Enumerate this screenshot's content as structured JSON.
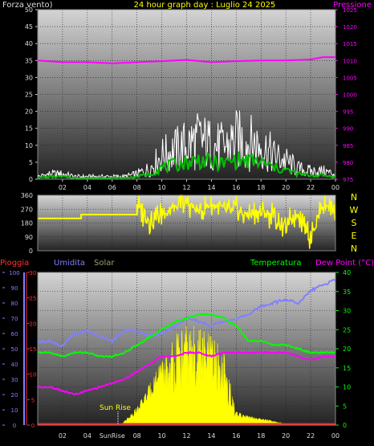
{
  "header": {
    "left": "Forza vento)",
    "center": "24 hour graph day : Luglio 24 2025",
    "right": "Pressione"
  },
  "labels": {
    "pioggia": "Pioggia",
    "umidita": "Umidita",
    "solar": "Solar",
    "temperatura": "Temperatura",
    "dewpoint": "Dew Point (°C)",
    "sunrise": "Sun Rise",
    "sunrise_axis": "SunRise"
  },
  "compass": [
    "N",
    "W",
    "S",
    "E",
    "N"
  ],
  "colors": {
    "wind": "#ffffff",
    "gust": "#00c000",
    "pressure": "#ff00ff",
    "direction": "#ffff00",
    "humidity": "#8080ff",
    "temperature": "#00ff00",
    "dewpoint": "#ff00ff",
    "solar": "#ffff00",
    "rain": "#ff2020"
  },
  "chart_data": [
    {
      "type": "line",
      "name": "wind-pressure",
      "x_ticks": [
        "02",
        "04",
        "06",
        "08",
        "10",
        "12",
        "14",
        "16",
        "18",
        "20",
        "22",
        "00"
      ],
      "y_left_ticks": [
        "0",
        "5",
        "10",
        "15",
        "20",
        "25",
        "30",
        "35",
        "40",
        "45",
        "50"
      ],
      "y_left_range": [
        0,
        50
      ],
      "y_right_ticks": [
        "975",
        "980",
        "985",
        "990",
        "995",
        "1000",
        "1005",
        "1010",
        "1015",
        "1020",
        "1025"
      ],
      "y_right_range": [
        975,
        1025
      ],
      "grid": true,
      "series": [
        {
          "name": "Forza vento)",
          "axis": "left",
          "x": [
            0,
            1,
            2,
            3,
            4,
            5,
            6,
            7,
            8,
            9,
            10,
            11,
            12,
            13,
            14,
            15,
            16,
            17,
            18,
            19,
            20,
            21,
            22,
            23,
            24
          ],
          "y": [
            1,
            2,
            2,
            1,
            1,
            1,
            1,
            1,
            2,
            4,
            9,
            11,
            13,
            15,
            13,
            12,
            15,
            14,
            13,
            9,
            7,
            4,
            3,
            3,
            2
          ]
        },
        {
          "name": "Pressione",
          "axis": "right",
          "x": [
            0,
            2,
            4,
            6,
            8,
            10,
            12,
            14,
            16,
            18,
            20,
            22,
            23,
            24
          ],
          "y": [
            1010,
            1009.5,
            1009.5,
            1009.2,
            1009.5,
            1009.8,
            1010.2,
            1009.5,
            1009.8,
            1010,
            1010,
            1010.3,
            1011,
            1011
          ]
        }
      ]
    },
    {
      "type": "line",
      "name": "wind-direction",
      "y_ticks": [
        "0",
        "90",
        "180",
        "270",
        "360"
      ],
      "y_range": [
        0,
        360
      ],
      "series": [
        {
          "name": "direction",
          "x": [
            0,
            3.5,
            3.5,
            8,
            8,
            9,
            10,
            11,
            12,
            13,
            14,
            15,
            16,
            17,
            18,
            19,
            20,
            21,
            22,
            23,
            24
          ],
          "y": [
            210,
            210,
            235,
            235,
            300,
            200,
            240,
            280,
            320,
            250,
            300,
            270,
            250,
            240,
            250,
            230,
            150,
            250,
            100,
            300,
            280
          ]
        }
      ]
    },
    {
      "type": "area",
      "name": "rain-humidity-solar-temperature",
      "x_ticks": [
        "02",
        "04",
        "SunRise",
        "08",
        "10",
        "12",
        "14",
        "16",
        "18",
        "20",
        "22",
        "00"
      ],
      "y_rain_ticks": [
        "0",
        "5",
        "10",
        "15",
        "20",
        "25",
        "30"
      ],
      "y_rain_range": [
        0,
        30
      ],
      "y_humidity_ticks": [
        "0",
        "10",
        "20",
        "30",
        "40",
        "50",
        "60",
        "70",
        "80",
        "90",
        "100"
      ],
      "y_humidity_range": [
        0,
        100
      ],
      "y_temperature_ticks": [
        "0",
        "5",
        "10",
        "15",
        "20",
        "25",
        "30",
        "35",
        "40"
      ],
      "y_temperature_range": [
        0,
        40
      ],
      "grid": true,
      "series": [
        {
          "name": "Umidita",
          "axis": "humidity",
          "x": [
            0,
            1,
            2,
            3,
            4,
            5,
            6,
            7,
            8,
            9,
            10,
            11,
            12,
            13,
            14,
            15,
            16,
            17,
            18,
            19,
            20,
            21,
            22,
            23,
            24
          ],
          "y": [
            55,
            55,
            52,
            60,
            62,
            58,
            55,
            62,
            62,
            58,
            60,
            65,
            70,
            68,
            65,
            68,
            70,
            72,
            78,
            80,
            82,
            80,
            88,
            92,
            95
          ]
        },
        {
          "name": "Temperatura",
          "axis": "temperature",
          "x": [
            0,
            1,
            2,
            3,
            4,
            5,
            6,
            7,
            8,
            9,
            10,
            11,
            12,
            13,
            14,
            15,
            16,
            17,
            18,
            19,
            20,
            21,
            22,
            23,
            24
          ],
          "y": [
            19,
            19,
            18,
            19,
            19,
            18,
            18,
            19,
            21,
            23,
            25,
            27,
            28,
            29,
            29,
            28,
            26,
            22,
            22,
            21,
            21,
            20,
            19,
            19,
            19
          ]
        },
        {
          "name": "Dew Point (°C)",
          "axis": "temperature",
          "x": [
            0,
            1,
            2,
            3,
            4,
            5,
            6,
            7,
            8,
            9,
            10,
            11,
            12,
            13,
            14,
            15,
            16,
            17,
            18,
            19,
            20,
            21,
            22,
            23,
            24
          ],
          "y": [
            10,
            10,
            9,
            8,
            9,
            10,
            11,
            12,
            14,
            16,
            18,
            18,
            19,
            19,
            18,
            19,
            19,
            19,
            19,
            19,
            19,
            18,
            17,
            18,
            18
          ]
        },
        {
          "name": "Solar",
          "axis": "temperature",
          "x": [
            6.5,
            7,
            8,
            9,
            10,
            11,
            12,
            13,
            14,
            15,
            16,
            17,
            18,
            19,
            20,
            20.5
          ],
          "y": [
            0,
            1,
            4,
            9,
            15,
            22,
            24,
            24,
            22,
            18,
            3,
            2,
            1.5,
            1,
            0.3,
            0
          ]
        },
        {
          "name": "Pioggia",
          "axis": "rain",
          "x": [
            0,
            24
          ],
          "y": [
            0,
            0
          ]
        }
      ]
    }
  ]
}
